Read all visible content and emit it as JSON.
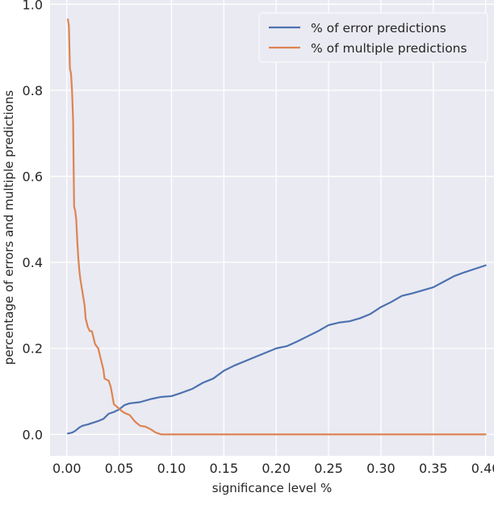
{
  "chart_data": {
    "type": "line",
    "title": "",
    "xlabel": "significance level %",
    "ylabel": "percentage of errors and multiple predictions",
    "xlim": [
      -0.016,
      0.408
    ],
    "ylim": [
      -0.05,
      1.01
    ],
    "xticks": [
      "0.00",
      "0.05",
      "0.10",
      "0.15",
      "0.20",
      "0.25",
      "0.30",
      "0.35",
      "0.40"
    ],
    "xtick_values": [
      0.0,
      0.05,
      0.1,
      0.15,
      0.2,
      0.25,
      0.3,
      0.35,
      0.4
    ],
    "yticks": [
      "0.0",
      "0.2",
      "0.4",
      "0.6",
      "0.8",
      "1.0"
    ],
    "ytick_values": [
      0.0,
      0.2,
      0.4,
      0.6,
      0.8,
      1.0
    ],
    "grid": true,
    "background": "#eaeaf2",
    "legend_position": "top-right",
    "series": [
      {
        "name": "% of error predictions",
        "color": "#4c72b0",
        "x": [
          0.001,
          0.005,
          0.008,
          0.01,
          0.012,
          0.015,
          0.02,
          0.025,
          0.03,
          0.035,
          0.04,
          0.045,
          0.05,
          0.055,
          0.06,
          0.07,
          0.08,
          0.09,
          0.1,
          0.11,
          0.12,
          0.13,
          0.14,
          0.15,
          0.16,
          0.17,
          0.18,
          0.19,
          0.2,
          0.21,
          0.22,
          0.23,
          0.24,
          0.25,
          0.26,
          0.27,
          0.28,
          0.29,
          0.3,
          0.31,
          0.32,
          0.33,
          0.34,
          0.35,
          0.36,
          0.37,
          0.38,
          0.39,
          0.4
        ],
        "y": [
          0.002,
          0.004,
          0.008,
          0.012,
          0.016,
          0.02,
          0.023,
          0.027,
          0.031,
          0.036,
          0.048,
          0.052,
          0.058,
          0.068,
          0.072,
          0.075,
          0.082,
          0.087,
          0.089,
          0.097,
          0.106,
          0.12,
          0.13,
          0.148,
          0.16,
          0.17,
          0.18,
          0.19,
          0.2,
          0.205,
          0.216,
          0.228,
          0.24,
          0.254,
          0.26,
          0.263,
          0.27,
          0.28,
          0.296,
          0.308,
          0.322,
          0.328,
          0.335,
          0.342,
          0.355,
          0.368,
          0.377,
          0.385,
          0.393
        ]
      },
      {
        "name": "% of multiple predictions",
        "color": "#dd8452",
        "x": [
          0.001,
          0.002,
          0.003,
          0.004,
          0.005,
          0.006,
          0.007,
          0.008,
          0.009,
          0.01,
          0.011,
          0.012,
          0.013,
          0.015,
          0.017,
          0.018,
          0.02,
          0.022,
          0.024,
          0.025,
          0.027,
          0.03,
          0.033,
          0.035,
          0.036,
          0.038,
          0.04,
          0.042,
          0.045,
          0.047,
          0.05,
          0.052,
          0.055,
          0.06,
          0.065,
          0.07,
          0.075,
          0.08,
          0.085,
          0.09,
          0.1,
          0.15,
          0.2,
          0.25,
          0.3,
          0.35,
          0.4
        ],
        "y": [
          0.965,
          0.95,
          0.85,
          0.84,
          0.8,
          0.73,
          0.53,
          0.52,
          0.5,
          0.45,
          0.41,
          0.38,
          0.36,
          0.33,
          0.3,
          0.27,
          0.25,
          0.24,
          0.24,
          0.23,
          0.21,
          0.2,
          0.17,
          0.15,
          0.13,
          0.127,
          0.125,
          0.11,
          0.07,
          0.066,
          0.06,
          0.055,
          0.05,
          0.045,
          0.03,
          0.02,
          0.018,
          0.012,
          0.004,
          0.0,
          0.0,
          0.0,
          0.0,
          0.0,
          0.0,
          0.0,
          0.0
        ]
      }
    ]
  }
}
